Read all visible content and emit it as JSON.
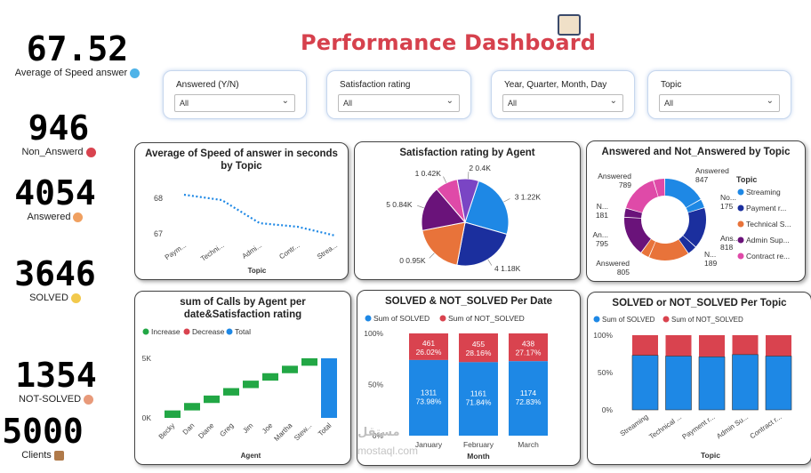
{
  "dashboard": {
    "title": "Performance Dashboard"
  },
  "kpis": [
    {
      "value": "67.52",
      "label": "Average of Speed answer",
      "color": "#6a1b7a",
      "icon": "phone-icon"
    },
    {
      "value": "946",
      "label": "Non_Answerd",
      "color": "#e2c170",
      "icon": "missed-call-icon"
    },
    {
      "value": "4054",
      "label": "Answered",
      "color": "#1e88e5",
      "icon": "agent-icon"
    },
    {
      "value": "3646",
      "label": "SOLVED",
      "color": "#1aa385",
      "icon": "lightbulb-icon"
    },
    {
      "value": "1354",
      "label": "NOT-SOLVED",
      "color": "#d9434f",
      "icon": "frustrated-icon"
    },
    {
      "value": "5000",
      "label": "Clients",
      "color": "#222222",
      "icon": "clients-icon"
    }
  ],
  "slicers": [
    {
      "label": "Answered (Y/N)",
      "value": "All"
    },
    {
      "label": "Satisfaction rating",
      "value": "All"
    },
    {
      "label": "Year, Quarter, Month, Day",
      "value": "All"
    },
    {
      "label": "Topic",
      "value": "All"
    }
  ],
  "watermark": {
    "line1": "مستقل",
    "line2": "mostaql.com"
  },
  "chart_data": [
    {
      "type": "line",
      "title": "Average of Speed of answer in seconds by Topic",
      "xlabel": "Topic",
      "ylabel": "",
      "categories": [
        "Paym...",
        "Techni...",
        "Admi...",
        "Contr...",
        "Strea..."
      ],
      "values": [
        68.1,
        67.95,
        67.3,
        67.2,
        66.95
      ],
      "yticks": [
        67,
        68
      ],
      "ylim": [
        66.8,
        68.3
      ],
      "color": "#1e88e5",
      "style": "dotted"
    },
    {
      "type": "pie",
      "title": "Satisfaction rating by Agent",
      "slices": [
        {
          "name": "3",
          "value": 1220,
          "label": "3 1.22K",
          "color": "#1e88e5"
        },
        {
          "name": "4",
          "value": 1180,
          "label": "4 1.18K",
          "color": "#1b2f9e"
        },
        {
          "name": "0",
          "value": 950,
          "label": "0 0.95K",
          "color": "#e8733a"
        },
        {
          "name": "5",
          "value": 840,
          "label": "5 0.84K",
          "color": "#6a137a"
        },
        {
          "name": "1",
          "value": 420,
          "label": "1 0.42K",
          "color": "#df4aa8"
        },
        {
          "name": "2",
          "value": 400,
          "label": "2 0.4K",
          "color": "#7a45c4"
        }
      ]
    },
    {
      "type": "pie",
      "donut": true,
      "title": "Answered and Not_Answered by Topic",
      "legend_title": "Topic",
      "legend": [
        {
          "name": "Streaming",
          "color": "#1e88e5"
        },
        {
          "name": "Payment r...",
          "color": "#1b2f9e"
        },
        {
          "name": "Technical S...",
          "color": "#e8733a"
        },
        {
          "name": "Admin Sup...",
          "color": "#6a137a"
        },
        {
          "name": "Contract re...",
          "color": "#df4aa8"
        }
      ],
      "slices": [
        {
          "topic": "Streaming",
          "answered": "Answered",
          "value": 847,
          "color": "#1e88e5"
        },
        {
          "topic": "Streaming",
          "answered": "No",
          "value": 175,
          "color": "#1e88e5"
        },
        {
          "topic": "Payment r...",
          "answered": "Answered",
          "value": 818,
          "color": "#1b2f9e"
        },
        {
          "topic": "Payment r...",
          "answered": "N...",
          "value": 189,
          "color": "#1b2f9e"
        },
        {
          "topic": "Technical S...",
          "answered": "Answered",
          "value": 805,
          "color": "#e8733a"
        },
        {
          "topic": "Technical S...",
          "answered": "N...",
          "value": 175,
          "color": "#e8733a"
        },
        {
          "topic": "Admin Sup...",
          "answered": "An...",
          "value": 795,
          "color": "#6a137a"
        },
        {
          "topic": "Admin Sup...",
          "answered": "N...",
          "value": 181,
          "color": "#6a137a"
        },
        {
          "topic": "Contract re...",
          "answered": "Answered",
          "value": 789,
          "color": "#df4aa8"
        },
        {
          "topic": "Contract re...",
          "answered": "N...",
          "value": 226,
          "color": "#df4aa8"
        }
      ],
      "labels": [
        {
          "text1": "Answered",
          "text2": "847"
        },
        {
          "text1": "No...",
          "text2": "175"
        },
        {
          "text1": "Ans...",
          "text2": "818"
        },
        {
          "text1": "N...",
          "text2": "189"
        },
        {
          "text1": "Answered",
          "text2": "805"
        },
        {
          "text1": "An...",
          "text2": "795"
        },
        {
          "text1": "N...",
          "text2": "181"
        },
        {
          "text1": "Answered",
          "text2": "789"
        }
      ]
    },
    {
      "type": "bar",
      "subtype": "waterfall",
      "title": "sum of Calls by Agent per date&Satisfaction rating",
      "xlabel": "Agent",
      "categories": [
        "Becky",
        "Dan",
        "Diane",
        "Greg",
        "Jim",
        "Joe",
        "Martha",
        "Stew...",
        "Total"
      ],
      "values": [
        625,
        625,
        625,
        625,
        625,
        625,
        625,
        625,
        5000
      ],
      "ylim": [
        0,
        5000
      ],
      "yticks": [
        "0K",
        "5K"
      ],
      "legend": [
        {
          "name": "Increase",
          "color": "#22a745"
        },
        {
          "name": "Decrease",
          "color": "#d9434f"
        },
        {
          "name": "Total",
          "color": "#1e88e5"
        }
      ]
    },
    {
      "type": "bar",
      "subtype": "stacked-100",
      "title": "SOLVED & NOT_SOLVED Per Date",
      "xlabel": "Month",
      "categories": [
        "January",
        "February",
        "March"
      ],
      "yticks": [
        "0%",
        "50%",
        "100%"
      ],
      "series": [
        {
          "name": "Sum of SOLVED",
          "color": "#1e88e5",
          "values": [
            1311,
            1161,
            1174
          ],
          "pct": [
            "73.98%",
            "71.84%",
            "72.83%"
          ]
        },
        {
          "name": "Sum of NOT_SOLVED",
          "color": "#d9434f",
          "values": [
            461,
            455,
            438
          ],
          "pct": [
            "26.02%",
            "28.16%",
            "27.17%"
          ]
        }
      ]
    },
    {
      "type": "bar",
      "subtype": "stacked-100",
      "title": "SOLVED or NOT_SOLVED Per Topic",
      "xlabel": "Topic",
      "categories": [
        "Streaming",
        "Technical ...",
        "Payment r...",
        "Admin Su...",
        "Contract r..."
      ],
      "yticks": [
        "0%",
        "50%",
        "100%"
      ],
      "series": [
        {
          "name": "Sum of SOLVED",
          "color": "#1e88e5",
          "values": [
            73,
            72,
            71,
            74,
            72
          ]
        },
        {
          "name": "Sum of NOT_SOLVED",
          "color": "#d9434f",
          "values": [
            27,
            28,
            29,
            26,
            28
          ]
        }
      ]
    }
  ]
}
